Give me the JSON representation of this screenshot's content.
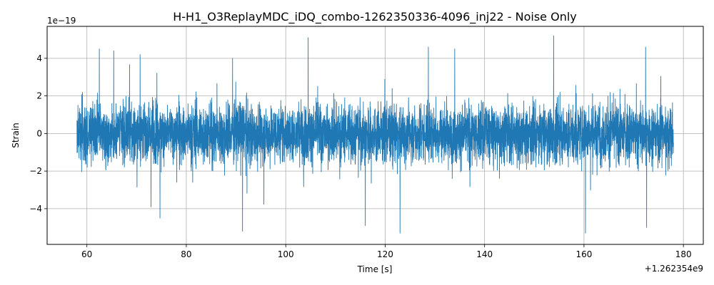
{
  "chart_data": {
    "type": "line",
    "title": "H-H1_O3ReplayMDC_iDQ_combo-1262350336-4096_inj22 - Noise Only",
    "xlabel": "Time [s]",
    "ylabel": "Strain",
    "x_offset_label": "+1.262354e9",
    "y_scale_label": "1e−19",
    "xlim": [
      52,
      184
    ],
    "ylim": [
      -5.9,
      5.7
    ],
    "x_ticks": [
      60,
      80,
      100,
      120,
      140,
      160,
      180
    ],
    "x_tick_labels": [
      "60",
      "80",
      "100",
      "120",
      "140",
      "160",
      "180"
    ],
    "y_ticks": [
      -4,
      -2,
      0,
      2,
      4
    ],
    "y_tick_labels": [
      "−4",
      "−2",
      "0",
      "2",
      "4"
    ],
    "grid": true,
    "line_color": "#1f77b4",
    "series": [
      {
        "x_range": [
          58.0,
          178.0
        ],
        "y_range": [
          -5.3,
          5.2
        ],
        "peaks": [
          {
            "x": 62.5,
            "y": 4.5
          },
          {
            "x": 65.4,
            "y": 4.4
          },
          {
            "x": 70.7,
            "y": 4.2
          },
          {
            "x": 72.9,
            "y": -3.9
          },
          {
            "x": 74.7,
            "y": -4.5
          },
          {
            "x": 89.3,
            "y": 4.0
          },
          {
            "x": 91.3,
            "y": -5.2
          },
          {
            "x": 104.5,
            "y": 5.1
          },
          {
            "x": 116.0,
            "y": -4.9
          },
          {
            "x": 123.0,
            "y": -5.3
          },
          {
            "x": 128.7,
            "y": 4.6
          },
          {
            "x": 134.0,
            "y": 4.5
          },
          {
            "x": 153.9,
            "y": 5.2
          },
          {
            "x": 160.3,
            "y": -5.3
          },
          {
            "x": 172.4,
            "y": 4.6
          },
          {
            "x": 172.6,
            "y": -5.0
          }
        ]
      }
    ]
  }
}
